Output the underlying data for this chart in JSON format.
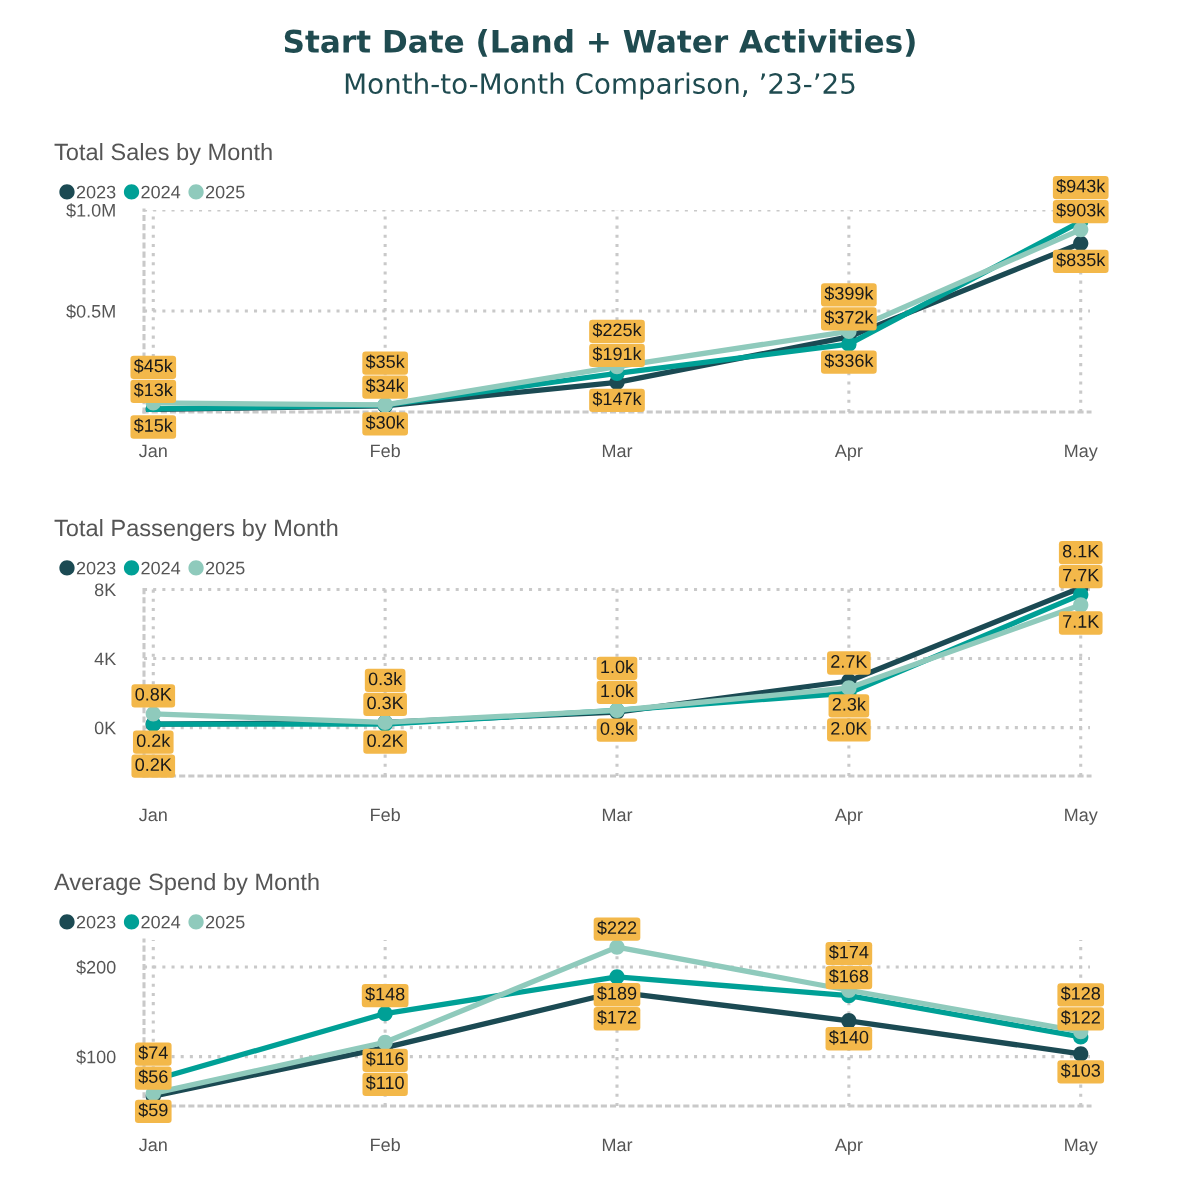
{
  "chart_data": [
    {
      "type": "other",
      "title": "Start Date (Land + Water Activities)",
      "subtitle": "Month-to-Month Comparison, ’23-’25"
    },
    {
      "type": "line",
      "title": "Total Sales by Month",
      "categories": [
        "Jan",
        "Feb",
        "Mar",
        "Apr",
        "May"
      ],
      "series": [
        {
          "name": "2023",
          "color": "#1b4a53",
          "values": [
            13000,
            30000,
            147000,
            372000,
            835000
          ],
          "value_labels": [
            "$13k",
            "$30k",
            "$147k",
            "$372k",
            "$835k"
          ]
        },
        {
          "name": "2024",
          "color": "#00a096",
          "values": [
            15000,
            34000,
            191000,
            336000,
            943000
          ],
          "value_labels": [
            "$15k",
            "$34k",
            "$191k",
            "$336k",
            "$943k"
          ]
        },
        {
          "name": "2025",
          "color": "#8fcabc",
          "values": [
            45000,
            35000,
            225000,
            399000,
            903000
          ],
          "value_labels": [
            "$45k",
            "$35k",
            "$225k",
            "$399k",
            "$903k"
          ]
        }
      ],
      "ylim": [
        0,
        1000000
      ],
      "yticks": [
        {
          "value": 500000,
          "label": "$0.5M"
        },
        {
          "value": 1000000,
          "label": "$1.0M"
        }
      ],
      "grid": true,
      "legend": "top left",
      "marker": "circle",
      "line_style": "solid"
    },
    {
      "type": "line",
      "title": "Total Passengers by Month",
      "categories": [
        "Jan",
        "Feb",
        "Mar",
        "Apr",
        "May"
      ],
      "series": [
        {
          "name": "2023",
          "color": "#1b4a53",
          "values": [
            200,
            300,
            900,
            2700,
            8100
          ],
          "value_labels": [
            "0.2k",
            "0.3K",
            "0.9k",
            "2.7K",
            "8.1K"
          ]
        },
        {
          "name": "2024",
          "color": "#00a096",
          "values": [
            200,
            200,
            1000,
            2000,
            7700
          ],
          "value_labels": [
            "0.2K",
            "0.2K",
            "1.0k",
            "2.0K",
            "7.7K"
          ]
        },
        {
          "name": "2025",
          "color": "#8fcabc",
          "values": [
            800,
            300,
            1000,
            2300,
            7100
          ],
          "value_labels": [
            "0.8K",
            "0.3k",
            "1.0k",
            "2.3k",
            "7.1K"
          ]
        }
      ],
      "ylim": [
        -2800,
        8200
      ],
      "yticks": [
        {
          "value": 0,
          "label": "0K"
        },
        {
          "value": 4000,
          "label": "4K"
        },
        {
          "value": 8000,
          "label": "8K"
        }
      ],
      "grid": true,
      "legend": "top left",
      "marker": "circle",
      "line_style": "solid"
    },
    {
      "type": "line",
      "title": "Average Spend by Month",
      "categories": [
        "Jan",
        "Feb",
        "Mar",
        "Apr",
        "May"
      ],
      "series": [
        {
          "name": "2023",
          "color": "#1b4a53",
          "values": [
            56,
            110,
            172,
            140,
            103
          ],
          "value_labels": [
            "$56",
            "$110",
            "$172",
            "$140",
            "$103"
          ]
        },
        {
          "name": "2024",
          "color": "#00a096",
          "values": [
            74,
            148,
            189,
            168,
            122
          ],
          "value_labels": [
            "$74",
            "$148",
            "$189",
            "$168",
            "$122"
          ]
        },
        {
          "name": "2025",
          "color": "#8fcabc",
          "values": [
            59,
            116,
            222,
            174,
            128
          ],
          "value_labels": [
            "$59",
            "$116",
            "$222",
            "$174",
            "$128"
          ]
        }
      ],
      "ylim": [
        45,
        230
      ],
      "yticks": [
        {
          "value": 100,
          "label": "$100"
        },
        {
          "value": 200,
          "label": "$200"
        }
      ],
      "grid": true,
      "legend": "top left",
      "marker": "circle",
      "line_style": "solid"
    }
  ]
}
